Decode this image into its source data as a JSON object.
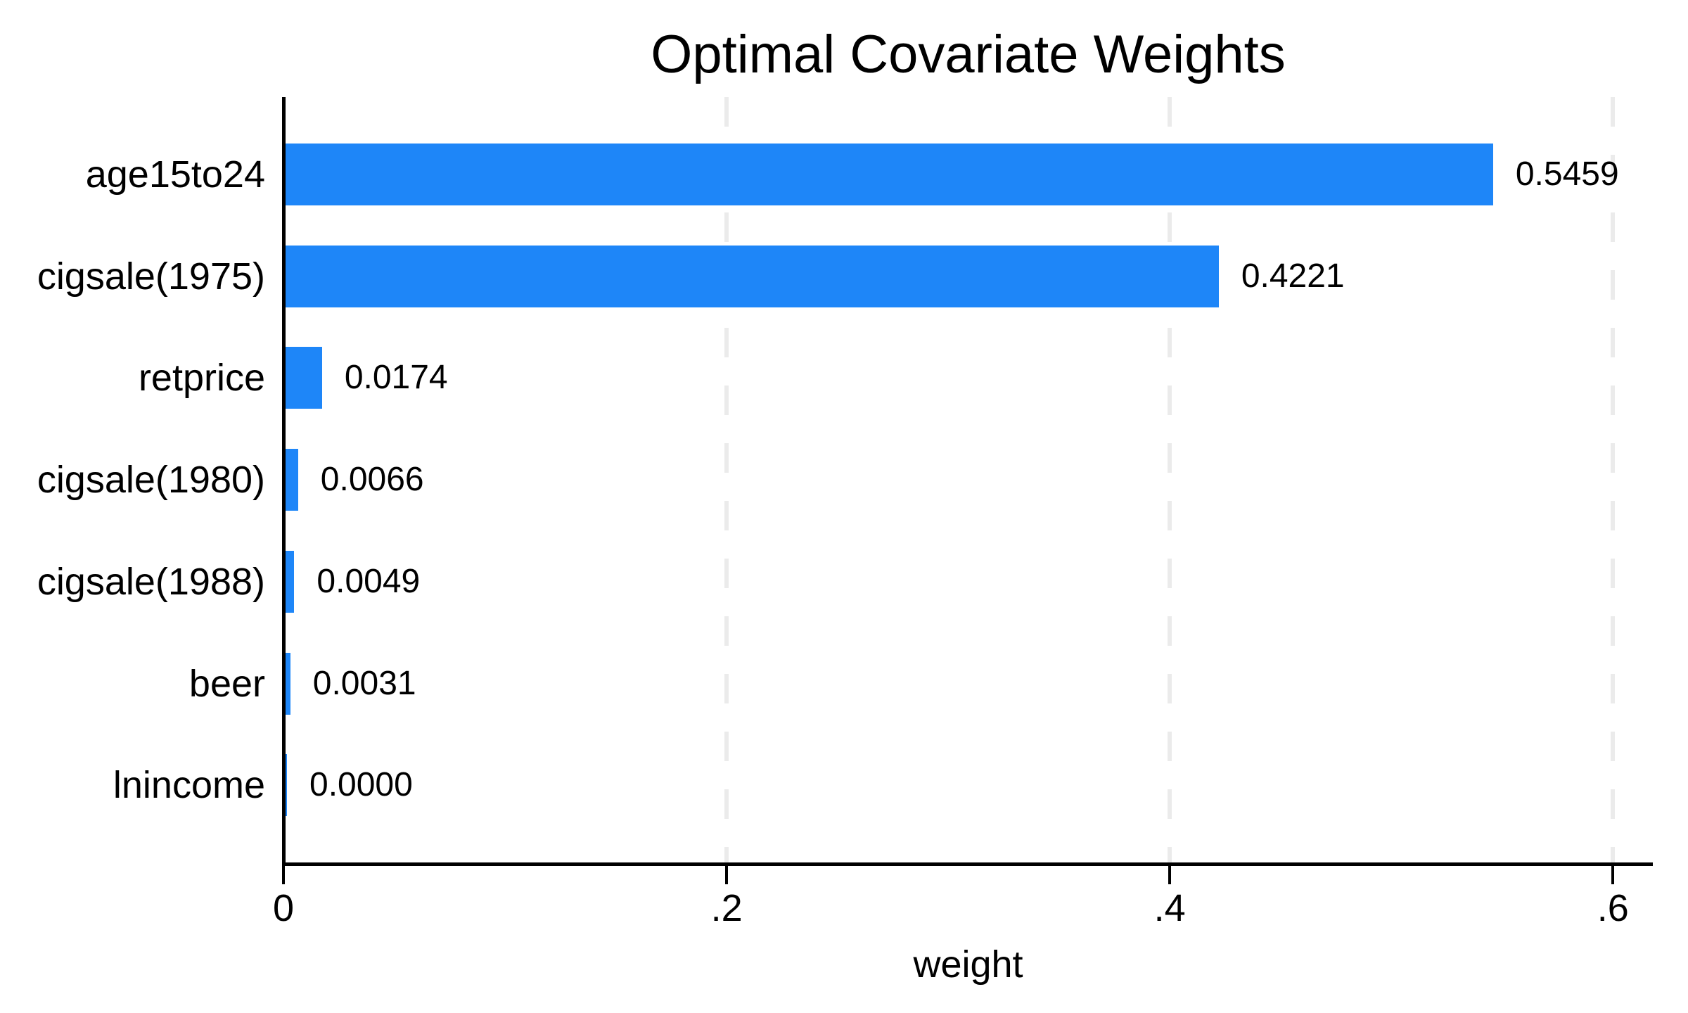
{
  "chart_data": {
    "type": "bar",
    "orientation": "horizontal",
    "title": "Optimal Covariate Weights",
    "xlabel": "weight",
    "categories": [
      "age15to24",
      "cigsale(1975)",
      "retprice",
      "cigsale(1980)",
      "cigsale(1988)",
      "beer",
      "lnincome"
    ],
    "values": [
      0.5459,
      0.4221,
      0.0174,
      0.0066,
      0.0049,
      0.0031,
      0.0
    ],
    "value_labels": [
      "0.5459",
      "0.4221",
      "0.0174",
      "0.0066",
      "0.0049",
      "0.0031",
      "0.0000"
    ],
    "xticks": [
      {
        "value": 0.0,
        "label": "0"
      },
      {
        "value": 0.2,
        "label": ".2"
      },
      {
        "value": 0.4,
        "label": ".4"
      },
      {
        "value": 0.6,
        "label": ".6"
      }
    ],
    "xlim": [
      0,
      0.618
    ],
    "grid": "vertical dashed gridlines at .2, .4, .6",
    "legend": "none",
    "bar_color": "#1E86F8",
    "gridline_color": "#EBEBEB",
    "axis_color": "#000000",
    "text_color": "#000000",
    "background_color": "#FFFFFF"
  }
}
